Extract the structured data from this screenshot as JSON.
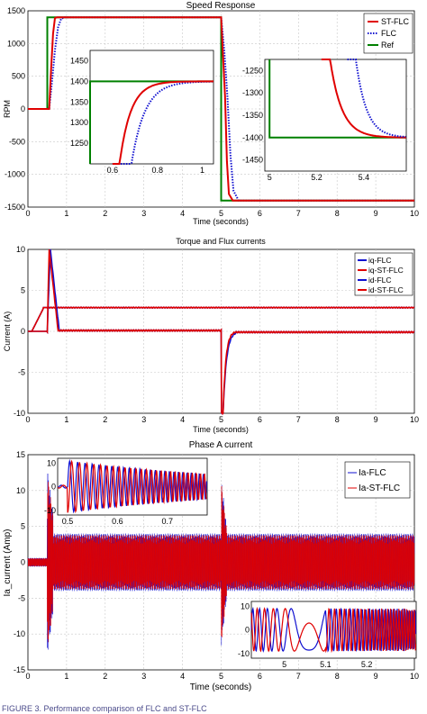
{
  "chart_data": [
    {
      "type": "line",
      "title": "Speed Response",
      "xlabel": "Time (seconds)",
      "ylabel": "RPM",
      "xlim": [
        0,
        10
      ],
      "ylim": [
        -1500,
        1500
      ],
      "xticks": [
        "0",
        "1",
        "2",
        "3",
        "4",
        "5",
        "6",
        "7",
        "8",
        "9",
        "10"
      ],
      "yticks": [
        "1500",
        "1000",
        "500",
        "0",
        "-500",
        "-1000",
        "-1500"
      ],
      "grid": true,
      "legend": "top-right",
      "series": [
        {
          "name": "ST-FLC",
          "color": "#e00000",
          "style": "solid",
          "x": [
            0,
            0.55,
            0.6,
            0.65,
            0.7,
            0.75,
            0.8,
            5.0,
            5.05,
            5.1,
            5.15,
            5.2,
            5.3,
            10
          ],
          "y": [
            0,
            0,
            600,
            1150,
            1390,
            1400,
            1400,
            1400,
            800,
            200,
            -800,
            -1300,
            -1400,
            -1400
          ]
        },
        {
          "name": "FLC",
          "color": "#1010d0",
          "style": "dotted",
          "x": [
            0,
            0.55,
            0.62,
            0.7,
            0.78,
            0.86,
            0.95,
            5.0,
            5.08,
            5.16,
            5.24,
            5.32,
            5.45,
            10
          ],
          "y": [
            0,
            0,
            400,
            900,
            1250,
            1380,
            1400,
            1400,
            900,
            200,
            -700,
            -1250,
            -1400,
            -1400
          ]
        },
        {
          "name": "Ref",
          "color": "#008000",
          "style": "solid",
          "x": [
            0,
            0.5,
            0.5,
            5.0,
            5.0,
            10
          ],
          "y": [
            0,
            0,
            1400,
            1400,
            -1400,
            -1400
          ]
        }
      ],
      "insets": [
        {
          "xlim": [
            0.5,
            1.05
          ],
          "ylim": [
            1200,
            1475
          ],
          "xticks": [
            "0.6",
            "0.8",
            "1"
          ],
          "yticks": [
            "1450",
            "1400",
            "1350",
            "1300",
            "1250"
          ]
        },
        {
          "xlim": [
            4.98,
            5.58
          ],
          "ylim": [
            -1475,
            -1225
          ],
          "xticks": [
            "5",
            "5.2",
            "5.4"
          ],
          "yticks": [
            "-1250",
            "-1300",
            "-1350",
            "-1400",
            "-1450"
          ]
        }
      ]
    },
    {
      "type": "line",
      "title": "Torque and Flux currents",
      "xlabel": "Time (seconds)",
      "ylabel": "Current (A)",
      "xlim": [
        0,
        10
      ],
      "ylim": [
        -10,
        10
      ],
      "xticks": [
        "0",
        "1",
        "2",
        "3",
        "4",
        "5",
        "6",
        "7",
        "8",
        "9",
        "10"
      ],
      "yticks": [
        "10",
        "5",
        "0",
        "-5",
        "-10"
      ],
      "grid": true,
      "legend": "top-right",
      "series": [
        {
          "name": "iq-FLC",
          "color": "#1010d0"
        },
        {
          "name": "iq-ST-FLC",
          "color": "#e00000"
        },
        {
          "name": "id-FLC",
          "color": "#1010d0"
        },
        {
          "name": "id-ST-FLC",
          "color": "#e00000"
        }
      ]
    },
    {
      "type": "line",
      "title": "Phase A current",
      "xlabel": "Time (seconds)",
      "ylabel": "Ia_current (Amp)",
      "xlim": [
        0,
        10
      ],
      "ylim": [
        -15,
        15
      ],
      "xticks": [
        "0",
        "1",
        "2",
        "3",
        "4",
        "5",
        "6",
        "7",
        "8",
        "9",
        "10"
      ],
      "yticks": [
        "15",
        "10",
        "5",
        "0",
        "-5",
        "-10",
        "-15"
      ],
      "grid": true,
      "legend": "top-right",
      "series": [
        {
          "name": "Ia-FLC",
          "color": "#1010d0"
        },
        {
          "name": "Ia-ST-FLC",
          "color": "#e00000"
        }
      ],
      "insets": [
        {
          "xlim": [
            0.48,
            0.78
          ],
          "ylim": [
            -12,
            12
          ],
          "xticks": [
            "0.5",
            "0.6",
            "0.7"
          ],
          "yticks": [
            "10",
            "0",
            "-10"
          ]
        },
        {
          "xlim": [
            4.92,
            5.32
          ],
          "ylim": [
            -12,
            12
          ],
          "xticks": [
            "5",
            "5.1",
            "5.2"
          ],
          "yticks": [
            "10",
            "0",
            "-10"
          ]
        }
      ]
    }
  ],
  "caption": "FIGURE 3. Performance comparison of FLC and ST-FLC"
}
